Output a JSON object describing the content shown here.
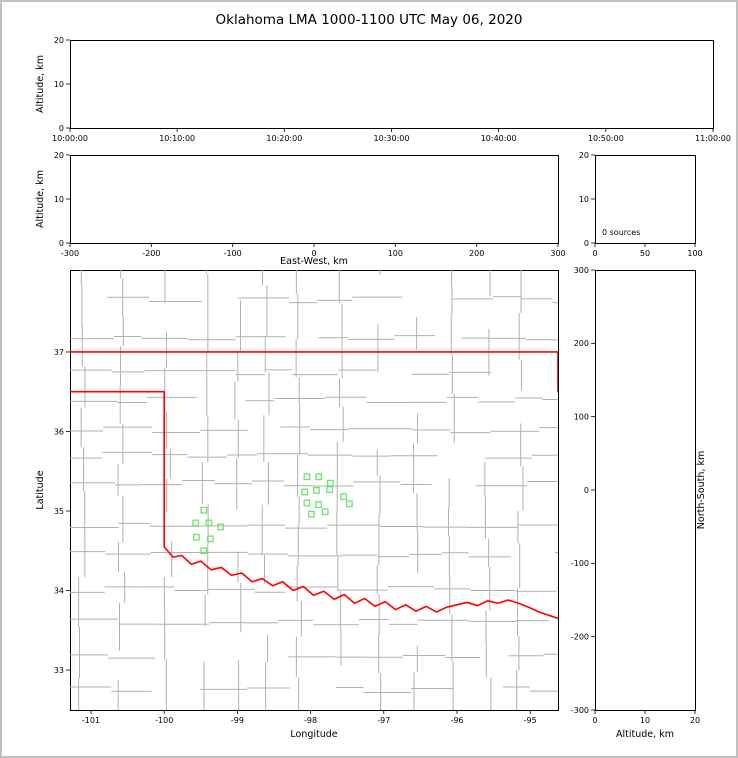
{
  "title": "Oklahoma LMA 1000-1100 UTC May 06, 2020",
  "colors": {
    "axis": "#000000",
    "background": "#ffffff",
    "outer_frame": "#bfbfbf",
    "state_border": "#ff0000",
    "county_lines": "#b0b0b0",
    "station_marker": "#6fe26f"
  },
  "chart_data": [
    {
      "id": "time_height_panel",
      "type": "scatter",
      "name": "Altitude vs Time (no sources plotted)",
      "ylabel": "Altitude, km",
      "xticks": {
        "values": [
          0,
          10,
          20,
          30,
          40,
          50,
          60
        ],
        "labels": [
          "10:00:00",
          "10:10:00",
          "10:20:00",
          "10:30:00",
          "10:40:00",
          "10:50:00",
          "11:00:00"
        ],
        "lim": [
          0,
          60
        ]
      },
      "yticks": {
        "values": [
          0,
          10,
          20
        ],
        "lim": [
          0,
          20
        ]
      },
      "points": []
    },
    {
      "id": "ew_height_panel",
      "type": "scatter",
      "name": "Altitude vs East-West distance (no sources plotted)",
      "xlabel": "East-West, km",
      "ylabel": "Altitude, km",
      "xticks": {
        "values": [
          -300,
          -200,
          -100,
          0,
          100,
          200,
          300
        ],
        "lim": [
          -300,
          300
        ]
      },
      "yticks": {
        "values": [
          0,
          10,
          20
        ],
        "lim": [
          0,
          20
        ]
      },
      "points": []
    },
    {
      "id": "altitude_histogram_panel",
      "type": "line",
      "name": "Source count histogram vs altitude",
      "annotation": "0 sources",
      "xticks": {
        "values": [
          0,
          50,
          100
        ],
        "lim": [
          0,
          100
        ]
      },
      "yticks": {
        "values": [
          0,
          10,
          20
        ],
        "lim": [
          0,
          20
        ]
      },
      "points": []
    },
    {
      "id": "map_panel",
      "type": "scatter",
      "name": "Plan view map of Oklahoma with LMA stations",
      "xlabel": "Longitude",
      "ylabel": "Latitude",
      "xticks": {
        "values": [
          -101,
          -100,
          -99,
          -98,
          -97,
          -96,
          -95
        ],
        "lim": [
          -101.287,
          -94.62
        ]
      },
      "yticks": {
        "values": [
          33,
          34,
          35,
          36,
          37
        ],
        "lim": [
          32.497,
          38.031
        ]
      },
      "stations": [
        [
          -98.05,
          35.43
        ],
        [
          -97.89,
          35.43
        ],
        [
          -97.73,
          35.35
        ],
        [
          -98.08,
          35.24
        ],
        [
          -97.92,
          35.26
        ],
        [
          -97.74,
          35.27
        ],
        [
          -98.05,
          35.1
        ],
        [
          -97.89,
          35.08
        ],
        [
          -97.55,
          35.18
        ],
        [
          -97.47,
          35.09
        ],
        [
          -97.99,
          34.96
        ],
        [
          -97.8,
          34.99
        ],
        [
          -99.46,
          35.01
        ],
        [
          -99.57,
          34.85
        ],
        [
          -99.39,
          34.85
        ],
        [
          -99.23,
          34.8
        ],
        [
          -99.56,
          34.67
        ],
        [
          -99.37,
          34.65
        ],
        [
          -99.46,
          34.5
        ]
      ],
      "state_border": [
        [
          [
            -101.29,
            37.0
          ],
          [
            -94.62,
            37.0
          ]
        ],
        [
          [
            -94.62,
            37.0
          ],
          [
            -94.62,
            36.5
          ]
        ],
        [
          [
            -101.29,
            36.5
          ],
          [
            -100.0,
            36.5
          ],
          [
            -100.0,
            34.55
          ]
        ],
        [
          [
            -100.0,
            34.55
          ],
          [
            -99.88,
            34.42
          ],
          [
            -99.76,
            34.44
          ],
          [
            -99.63,
            34.33
          ],
          [
            -99.5,
            34.37
          ],
          [
            -99.36,
            34.26
          ],
          [
            -99.22,
            34.29
          ],
          [
            -99.08,
            34.19
          ],
          [
            -98.94,
            34.22
          ],
          [
            -98.8,
            34.11
          ],
          [
            -98.66,
            34.15
          ],
          [
            -98.52,
            34.06
          ],
          [
            -98.38,
            34.11
          ],
          [
            -98.24,
            34.0
          ],
          [
            -98.1,
            34.05
          ],
          [
            -97.96,
            33.94
          ],
          [
            -97.82,
            33.99
          ],
          [
            -97.68,
            33.89
          ],
          [
            -97.54,
            33.95
          ],
          [
            -97.4,
            33.84
          ],
          [
            -97.26,
            33.9
          ],
          [
            -97.12,
            33.8
          ],
          [
            -96.98,
            33.86
          ],
          [
            -96.84,
            33.76
          ],
          [
            -96.7,
            33.82
          ],
          [
            -96.56,
            33.74
          ],
          [
            -96.42,
            33.8
          ],
          [
            -96.28,
            33.73
          ],
          [
            -96.14,
            33.79
          ],
          [
            -96.0,
            33.82
          ],
          [
            -95.86,
            33.85
          ],
          [
            -95.72,
            33.81
          ],
          [
            -95.58,
            33.87
          ],
          [
            -95.44,
            33.84
          ],
          [
            -95.3,
            33.88
          ],
          [
            -95.16,
            33.84
          ],
          [
            -95.02,
            33.79
          ],
          [
            -94.88,
            33.73
          ],
          [
            -94.62,
            33.65
          ]
        ]
      ],
      "points": []
    },
    {
      "id": "ns_height_panel",
      "type": "scatter",
      "name": "North-South distance vs Altitude (no sources plotted)",
      "xlabel": "Altitude, km",
      "ylabel_right": "North-South, km",
      "xticks": {
        "values": [
          0,
          10,
          20
        ],
        "lim": [
          0,
          20
        ]
      },
      "yticks": {
        "values": [
          -300,
          -200,
          -100,
          0,
          100,
          200,
          300
        ],
        "lim": [
          -300,
          300
        ]
      },
      "points": []
    }
  ]
}
